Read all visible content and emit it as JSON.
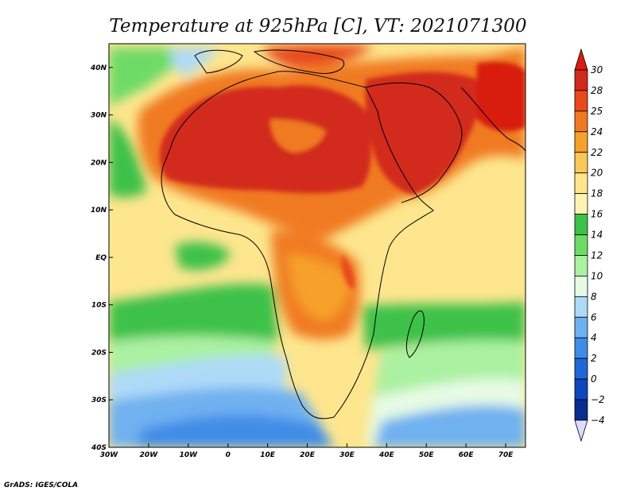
{
  "title": "Temperature at 925hPa [C], VT: 2021071300",
  "credit": "GrADS: IGES/COLA",
  "map": {
    "lon_range": [
      -30,
      75
    ],
    "lat_range": [
      -40,
      45
    ],
    "x_ticks": [
      {
        "value": -30,
        "label": "30W"
      },
      {
        "value": -20,
        "label": "20W"
      },
      {
        "value": -10,
        "label": "10W"
      },
      {
        "value": 0,
        "label": "0"
      },
      {
        "value": 10,
        "label": "10E"
      },
      {
        "value": 20,
        "label": "20E"
      },
      {
        "value": 30,
        "label": "30E"
      },
      {
        "value": 40,
        "label": "40E"
      },
      {
        "value": 50,
        "label": "50E"
      },
      {
        "value": 60,
        "label": "60E"
      },
      {
        "value": 70,
        "label": "70E"
      }
    ],
    "y_ticks": [
      {
        "value": 40,
        "label": "40N"
      },
      {
        "value": 30,
        "label": "30N"
      },
      {
        "value": 20,
        "label": "20N"
      },
      {
        "value": 10,
        "label": "10N"
      },
      {
        "value": 0,
        "label": "EQ"
      },
      {
        "value": -10,
        "label": "10S"
      },
      {
        "value": -20,
        "label": "20S"
      },
      {
        "value": -30,
        "label": "30S"
      },
      {
        "value": -40,
        "label": "40S"
      }
    ]
  },
  "colorbar": {
    "levels": [
      "30",
      "28",
      "25",
      "24",
      "22",
      "20",
      "18",
      "16",
      "14",
      "12",
      "10",
      "8",
      "6",
      "4",
      "2",
      "0",
      "−2",
      "−4"
    ],
    "colors": [
      "#d22a1a",
      "#e8491d",
      "#f07a21",
      "#f6a12c",
      "#fac85a",
      "#fde68e",
      "#fcf3b3",
      "#3cc149",
      "#6edb66",
      "#aaf1a1",
      "#e6fbe4",
      "#aedaf8",
      "#6fb1f0",
      "#3f8ce6",
      "#2168d6",
      "#0e46bd",
      "#0a2c8f",
      "#101b6b"
    ],
    "top_color": "#d81c10",
    "bottom_color": "#dedcff"
  }
}
